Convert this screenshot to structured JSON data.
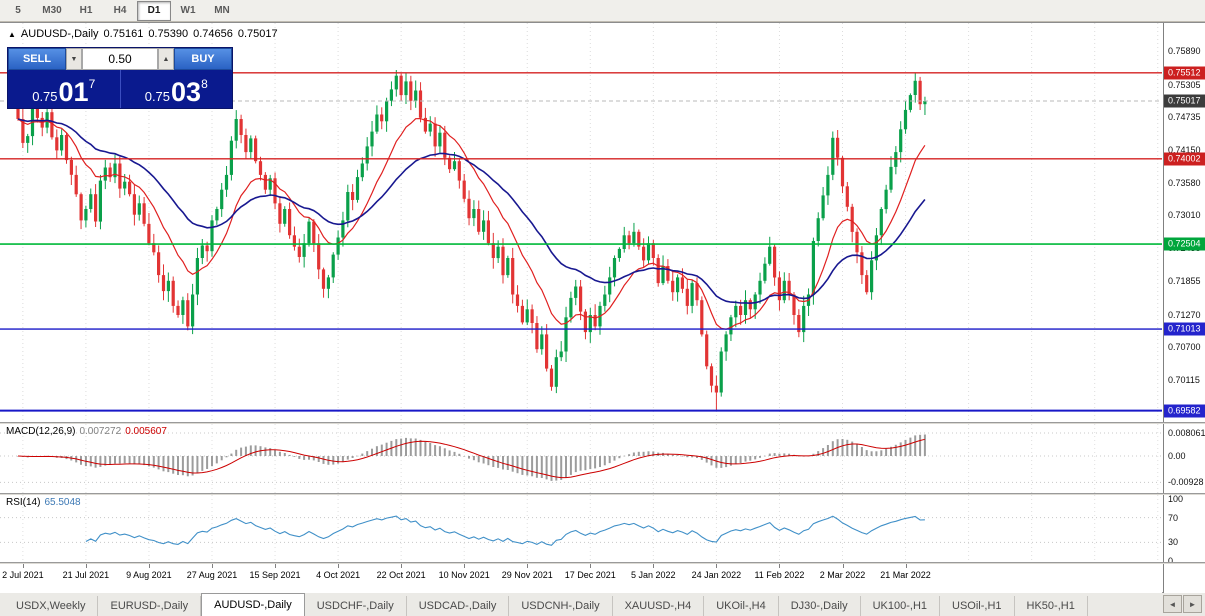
{
  "icons": {
    "chart_marker": "▲",
    "spinner_down": "▼",
    "spinner_up": "▲",
    "tab_scroll_left": "◄",
    "tab_scroll_right": "►"
  },
  "toolbar": {
    "items": [
      {
        "label": "5",
        "active": false
      },
      {
        "label": "M30",
        "active": false
      },
      {
        "label": "H1",
        "active": false
      },
      {
        "label": "H4",
        "active": false
      },
      {
        "label": "D1",
        "active": true
      },
      {
        "label": "W1",
        "active": false
      },
      {
        "label": "MN",
        "active": false
      }
    ]
  },
  "header": {
    "symbol": "AUDUSD-,Daily",
    "open": "0.75161",
    "high": "0.75390",
    "low": "0.74656",
    "close": "0.75017"
  },
  "trade_panel": {
    "sell_label": "SELL",
    "buy_label": "BUY",
    "volume": "0.50",
    "sell_price_main": "0.75",
    "sell_price_big": "01",
    "sell_price_sup": "7",
    "buy_price_main": "0.75",
    "buy_price_big": "03",
    "buy_price_sup": "8"
  },
  "price_axis": {
    "ticks": [
      {
        "label": "0.75890",
        "value": 0.7589
      },
      {
        "label": "0.75305",
        "value": 0.75305
      },
      {
        "label": "0.74735",
        "value": 0.74735
      },
      {
        "label": "0.74150",
        "value": 0.7415
      },
      {
        "label": "0.73580",
        "value": 0.7358
      },
      {
        "label": "0.73010",
        "value": 0.7301
      },
      {
        "label": "0.72435",
        "value": 0.72435
      },
      {
        "label": "0.71855",
        "value": 0.71855
      },
      {
        "label": "0.71270",
        "value": 0.7127
      },
      {
        "label": "0.70700",
        "value": 0.707
      },
      {
        "label": "0.70115",
        "value": 0.70115
      }
    ],
    "badges": [
      {
        "label": "0.75512",
        "value": 0.75512,
        "bg": "#cc2020"
      },
      {
        "label": "0.75017",
        "value": 0.75017,
        "bg": "#3c3c3c"
      },
      {
        "label": "0.74002",
        "value": 0.74002,
        "bg": "#cc2020"
      },
      {
        "label": "0.72504",
        "value": 0.72504,
        "bg": "#00a63c"
      },
      {
        "label": "0.71013",
        "value": 0.71013,
        "bg": "#2424cc"
      },
      {
        "label": "0.69582",
        "value": 0.69582,
        "bg": "#2424cc"
      }
    ]
  },
  "x_axis": {
    "labels": [
      {
        "text": "2 Jul 2021",
        "index": 1
      },
      {
        "text": "21 Jul 2021",
        "index": 14
      },
      {
        "text": "9 Aug 2021",
        "index": 27
      },
      {
        "text": "27 Aug 2021",
        "index": 40
      },
      {
        "text": "15 Sep 2021",
        "index": 53
      },
      {
        "text": "4 Oct 2021",
        "index": 66
      },
      {
        "text": "22 Oct 2021",
        "index": 79
      },
      {
        "text": "10 Nov 2021",
        "index": 92
      },
      {
        "text": "29 Nov 2021",
        "index": 105
      },
      {
        "text": "17 Dec 2021",
        "index": 118
      },
      {
        "text": "5 Jan 2022",
        "index": 131
      },
      {
        "text": "24 Jan 2022",
        "index": 144
      },
      {
        "text": "11 Feb 2022",
        "index": 157
      },
      {
        "text": "2 Mar 2022",
        "index": 170
      },
      {
        "text": "21 Mar 2022",
        "index": 183
      }
    ]
  },
  "indicator_macd": {
    "name": "MACD(12,26,9)",
    "value1": "0.007272",
    "value2": "0.005607",
    "axis": [
      {
        "label": "0.008061",
        "value": 0.008061
      },
      {
        "label": "0.00",
        "value": 0
      },
      {
        "label": "-0.00928",
        "value": -0.00928
      }
    ]
  },
  "indicator_rsi": {
    "name": "RSI(14)",
    "value": "65.5048",
    "axis": [
      {
        "label": "100",
        "value": 100
      },
      {
        "label": "70",
        "value": 70
      },
      {
        "label": "30",
        "value": 30
      },
      {
        "label": "0",
        "value": 0
      }
    ],
    "levels": [
      70,
      30
    ]
  },
  "tabs": {
    "items": [
      {
        "label": "USDX,Weekly",
        "active": false
      },
      {
        "label": "EURUSD-,Daily",
        "active": false
      },
      {
        "label": "AUDUSD-,Daily",
        "active": true
      },
      {
        "label": "USDCHF-,Daily",
        "active": false
      },
      {
        "label": "USDCAD-,Daily",
        "active": false
      },
      {
        "label": "USDCNH-,Daily",
        "active": false
      },
      {
        "label": "XAUUSD-,H4",
        "active": false
      },
      {
        "label": "UKOil-,H4",
        "active": false
      },
      {
        "label": "DJ30-,Daily",
        "active": false
      },
      {
        "label": "UK100-,H1",
        "active": false
      },
      {
        "label": "USOil-,H1",
        "active": false
      },
      {
        "label": "HK50-,H1",
        "active": false
      }
    ]
  },
  "chart_data": {
    "type": "candlestick",
    "symbol": "AUDUSD-",
    "timeframe": "Daily",
    "ohlc_header": {
      "open": 0.75161,
      "high": 0.7539,
      "low": 0.74656,
      "close": 0.75017
    },
    "ylim": [
      0.694,
      0.7628
    ],
    "start_open": 0.749,
    "closes": [
      0.747,
      0.7428,
      0.744,
      0.7488,
      0.7472,
      0.7455,
      0.7482,
      0.7438,
      0.7415,
      0.7442,
      0.7398,
      0.7372,
      0.7338,
      0.7292,
      0.7312,
      0.7338,
      0.729,
      0.7362,
      0.7385,
      0.7368,
      0.7392,
      0.7348,
      0.736,
      0.7338,
      0.7302,
      0.7322,
      0.7286,
      0.7252,
      0.7236,
      0.7196,
      0.7168,
      0.7186,
      0.7142,
      0.7126,
      0.7152,
      0.7106,
      0.7162,
      0.7226,
      0.7248,
      0.7238,
      0.7292,
      0.7312,
      0.7346,
      0.7372,
      0.7432,
      0.747,
      0.7442,
      0.7412,
      0.7436,
      0.7396,
      0.7372,
      0.7346,
      0.7366,
      0.7322,
      0.7286,
      0.7312,
      0.7266,
      0.7246,
      0.7228,
      0.7252,
      0.729,
      0.7252,
      0.7206,
      0.7172,
      0.7192,
      0.7232,
      0.7262,
      0.7292,
      0.7342,
      0.7328,
      0.7368,
      0.7392,
      0.7422,
      0.7448,
      0.7478,
      0.7466,
      0.7502,
      0.7522,
      0.7546,
      0.7512,
      0.7536,
      0.7502,
      0.752,
      0.7472,
      0.7448,
      0.7462,
      0.7422,
      0.7446,
      0.7402,
      0.7382,
      0.7396,
      0.7362,
      0.733,
      0.7296,
      0.7312,
      0.7272,
      0.7292,
      0.7252,
      0.7226,
      0.7246,
      0.7196,
      0.7226,
      0.7162,
      0.7142,
      0.7113,
      0.7136,
      0.7112,
      0.7066,
      0.7092,
      0.7032,
      0.7,
      0.7052,
      0.7062,
      0.7122,
      0.7156,
      0.7176,
      0.7132,
      0.7096,
      0.7126,
      0.7106,
      0.7142,
      0.7162,
      0.7192,
      0.7226,
      0.7242,
      0.7266,
      0.7252,
      0.7272,
      0.7246,
      0.7222,
      0.7252,
      0.7226,
      0.7182,
      0.7212,
      0.7186,
      0.7166,
      0.7192,
      0.7172,
      0.7142,
      0.7182,
      0.7152,
      0.7092,
      0.7036,
      0.7002,
      0.699,
      0.7062,
      0.7092,
      0.7122,
      0.7142,
      0.7126,
      0.7152,
      0.7136,
      0.7162,
      0.7186,
      0.7216,
      0.7246,
      0.7192,
      0.7152,
      0.7186,
      0.7162,
      0.7126,
      0.7096,
      0.7142,
      0.7162,
      0.7256,
      0.7296,
      0.7336,
      0.7372,
      0.7437,
      0.7402,
      0.7352,
      0.7316,
      0.7272,
      0.7236,
      0.7196,
      0.7166,
      0.7222,
      0.7266,
      0.7312,
      0.7346,
      0.7386,
      0.7412,
      0.7452,
      0.7486,
      0.7512,
      0.7537,
      0.7496,
      0.75017
    ],
    "wick_highs": {
      "78": 0.7556,
      "185": 0.7551,
      "186": 0.7544
    },
    "wick_lows": {
      "110": 0.6993,
      "144": 0.6958
    },
    "levels": [
      {
        "price": 0.75512,
        "color": "#d42222",
        "width": 1.4
      },
      {
        "price": 0.74002,
        "color": "#d42222",
        "width": 1.4
      },
      {
        "price": 0.72504,
        "color": "#00b93a",
        "width": 1.6
      },
      {
        "price": 0.71013,
        "color": "#1818c8",
        "width": 1.4
      },
      {
        "price": 0.69582,
        "color": "#1818c8",
        "width": 2
      }
    ],
    "current_price": 0.75017,
    "ma_fast": {
      "period": 13,
      "color": "#e02020"
    },
    "ma_slow": {
      "period": 34,
      "color": "#181890"
    },
    "colors": {
      "up": "#0aa04a",
      "down": "#e23434",
      "macd_hist": "#9c9c9c",
      "macd_signal": "#cc0000",
      "rsi_line": "#4090c8"
    }
  }
}
